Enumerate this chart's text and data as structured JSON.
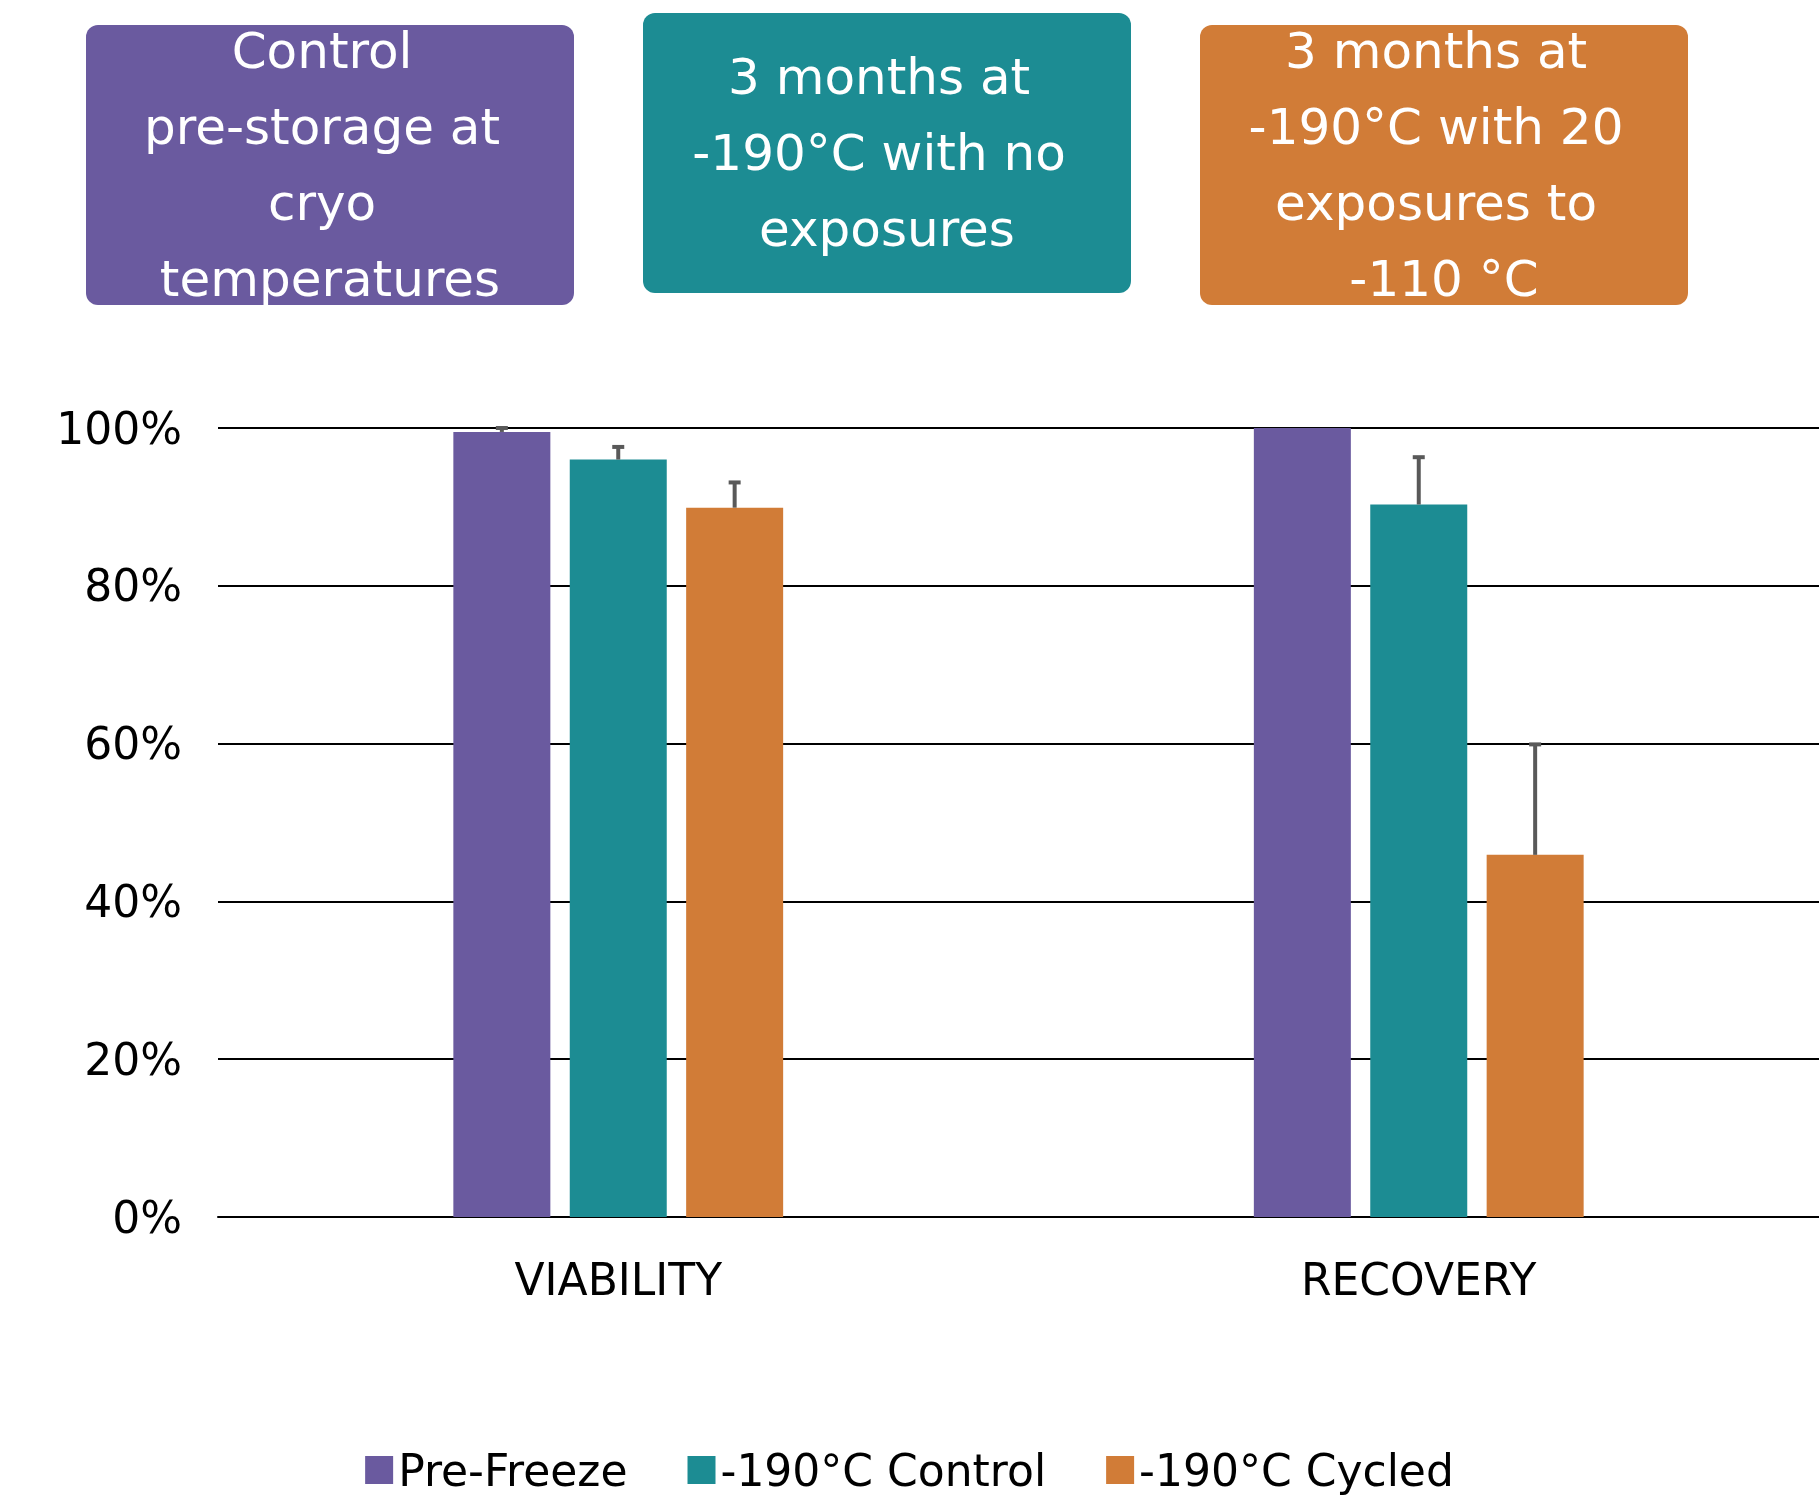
{
  "chart_data": {
    "type": "bar",
    "annotations": [
      "Control pre-storage at cryo temperatures",
      "3 months at -190°C with no exposures",
      "3 months at -190°C with 20 exposures to -110 °C"
    ],
    "categories": [
      "VIABILITY",
      "RECOVERY"
    ],
    "series": [
      {
        "name": "Pre-Freeze",
        "color": "#6a5a9f",
        "values": [
          99.5,
          100
        ],
        "errors": [
          [
            99.5,
            100
          ],
          null
        ]
      },
      {
        "name": "-190°C Control",
        "color": "#1c8c93",
        "values": [
          96,
          90.3
        ],
        "errors": [
          [
            96,
            97.6
          ],
          [
            90.3,
            96.3
          ]
        ]
      },
      {
        "name": "-190°C Cycled",
        "color": "#d17c37",
        "values": [
          89.9,
          45.9
        ],
        "errors": [
          [
            89.9,
            93.1
          ],
          [
            45.9,
            59.9
          ]
        ]
      }
    ],
    "ylim": [
      0,
      100
    ],
    "yticks": [
      {
        "value": 0,
        "label": "0%"
      },
      {
        "value": 20,
        "label": "20%"
      },
      {
        "value": 40,
        "label": "40%"
      },
      {
        "value": 60,
        "label": "60%"
      },
      {
        "value": 80,
        "label": "80%"
      },
      {
        "value": 100,
        "label": "100%"
      }
    ],
    "grid": "y",
    "legend": "bottom"
  }
}
